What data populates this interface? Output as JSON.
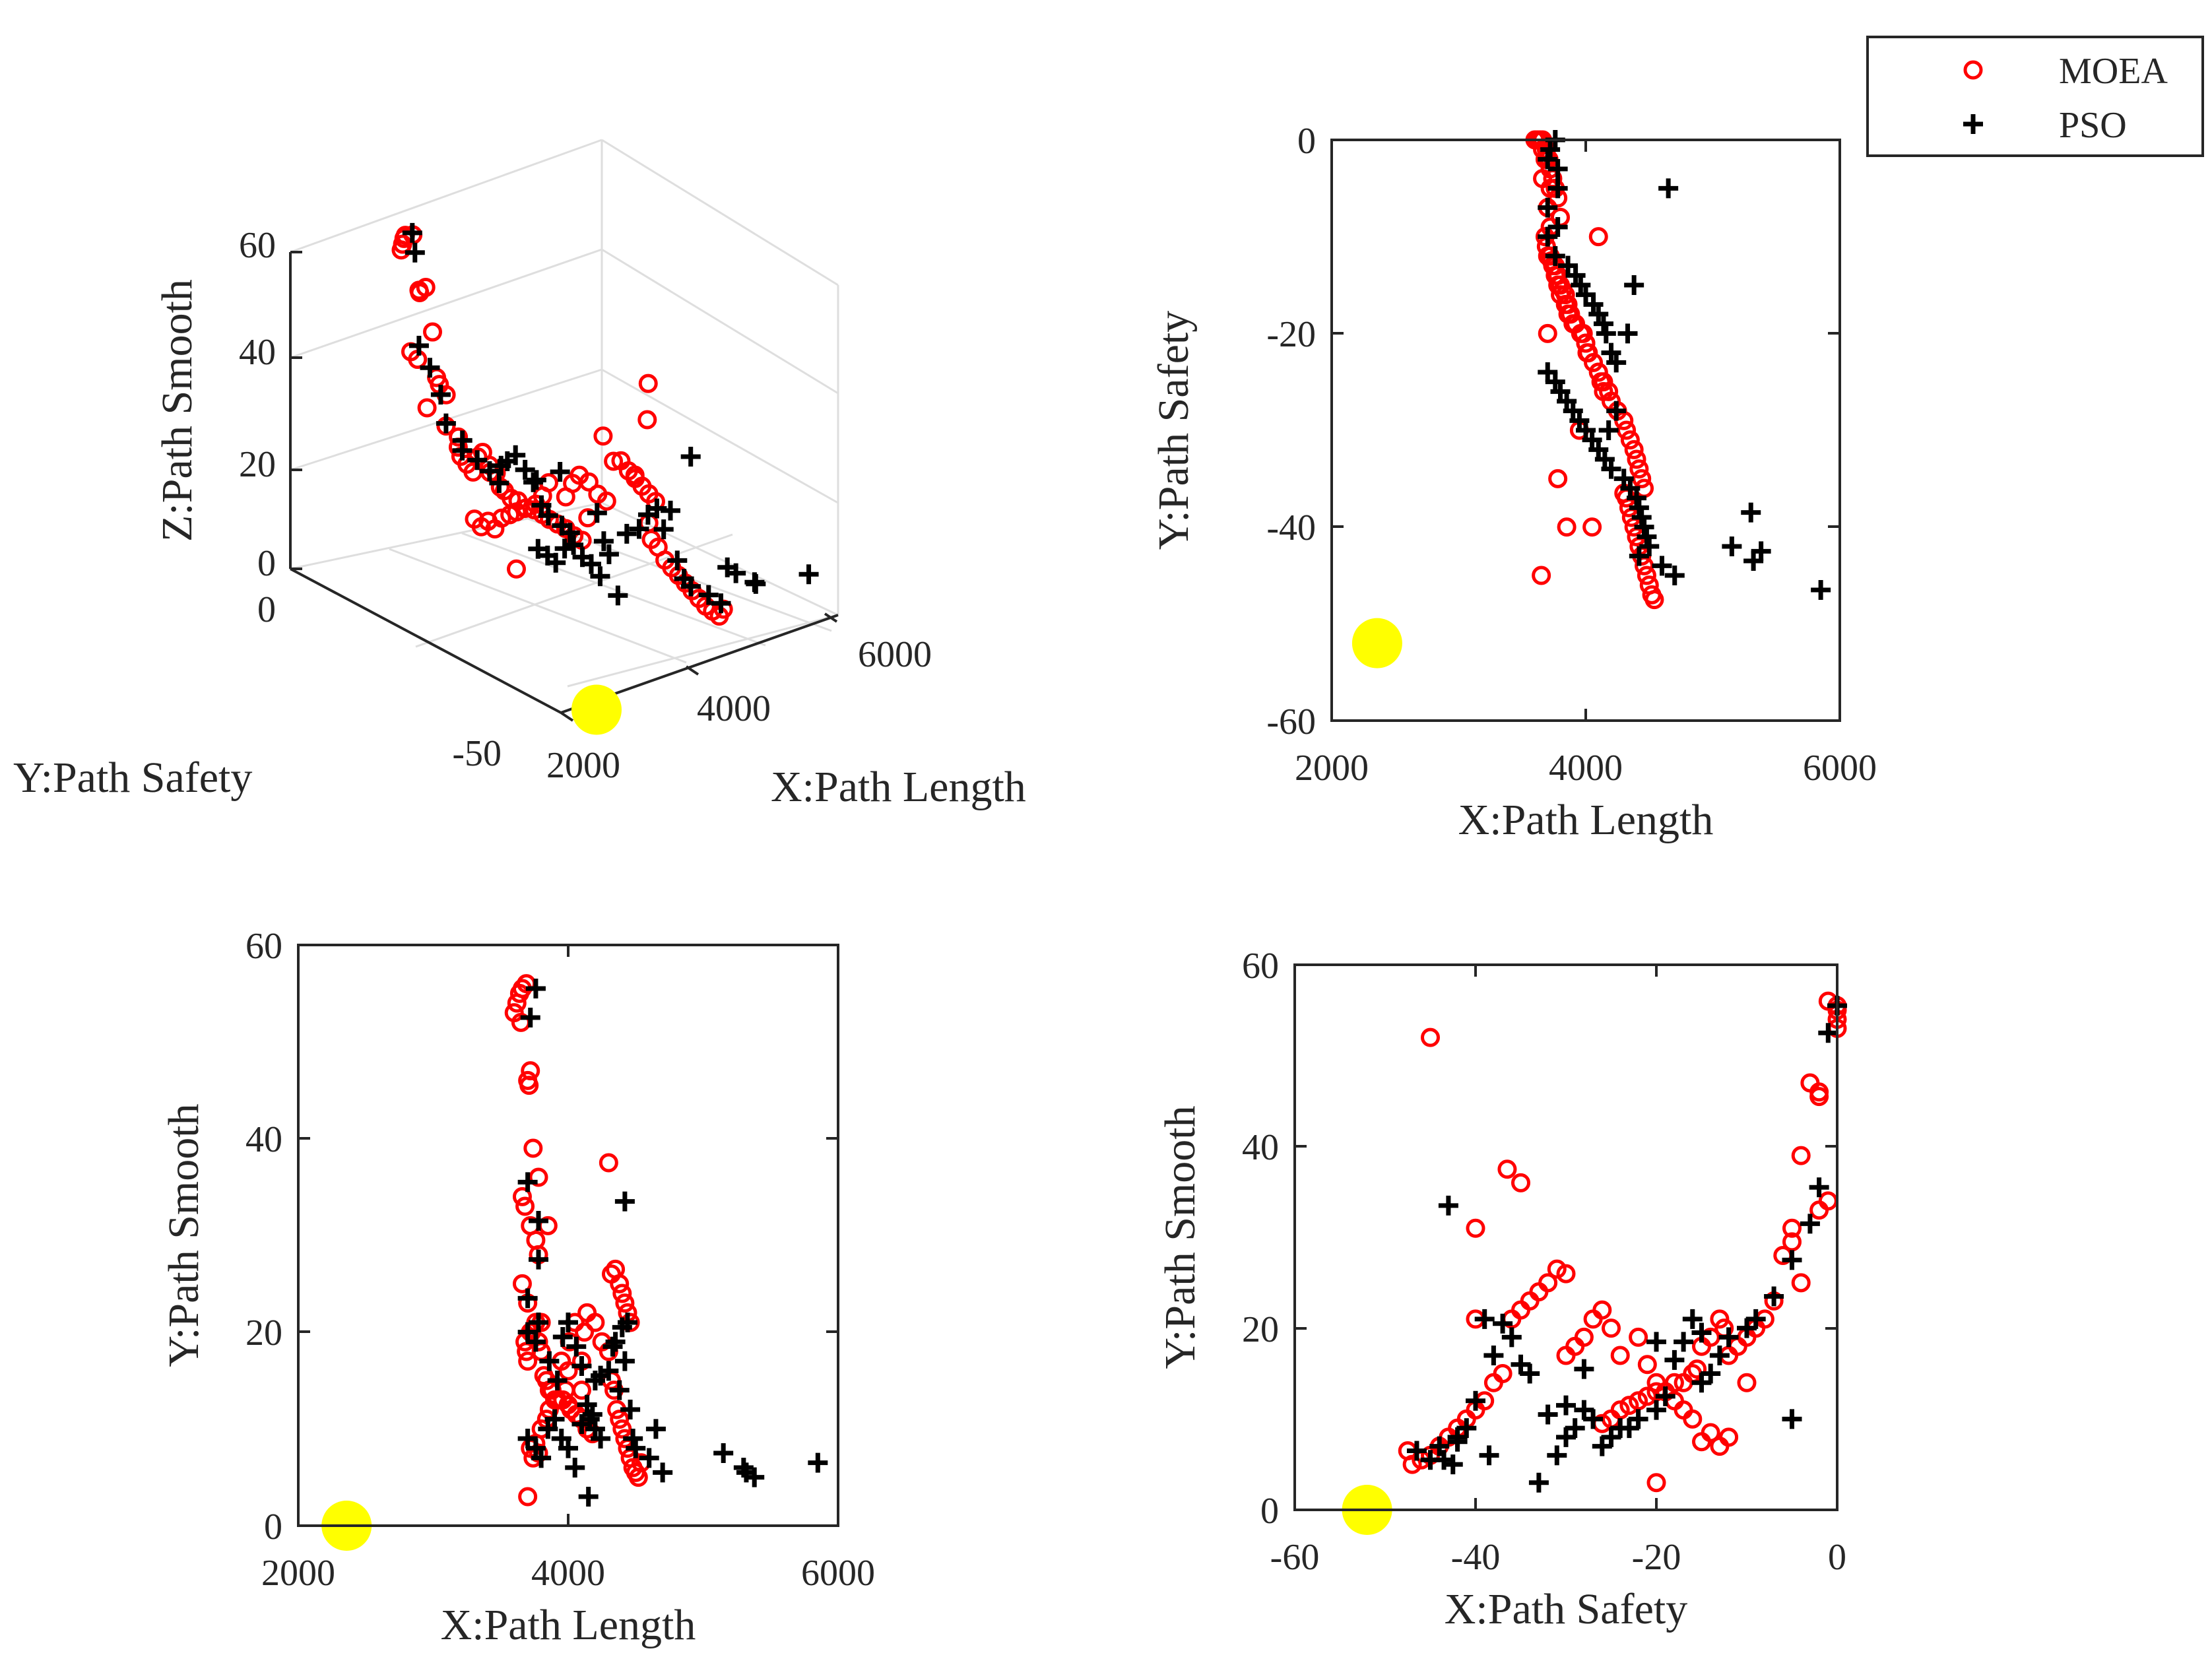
{
  "colors": {
    "moea": "#ff0000",
    "pso": "#000000",
    "ideal": "#ffff00",
    "axis": "#262626"
  },
  "legend": {
    "moea_label": "MOEA",
    "pso_label": "PSO",
    "placement": "top-right"
  },
  "chart_data": [
    {
      "type": "scatter3d",
      "xlabel": "X:Path Length",
      "ylabel": "Y:Path Safety",
      "zlabel": "Z:Path Smooth",
      "xlim": [
        2000,
        6000
      ],
      "ylim": [
        -50,
        0
      ],
      "zlim": [
        0,
        60
      ],
      "xticks": [
        "2000",
        "4000",
        "6000"
      ],
      "yticks": [
        "-50",
        "0"
      ],
      "zticks": [
        "0",
        "20",
        "40",
        "60"
      ],
      "ideal_point": {
        "x": 2358,
        "y": -52,
        "z": 0
      }
    },
    {
      "type": "scatter",
      "xlabel": "X:Path Length",
      "ylabel": "Y:Path Safety",
      "xlim": [
        2000,
        6000
      ],
      "ylim": [
        -60,
        0
      ],
      "xticks": [
        "2000",
        "4000",
        "6000"
      ],
      "yticks": [
        "-60",
        "-40",
        "-20",
        "0"
      ],
      "ideal_point": {
        "x": 2358,
        "y": -52
      }
    },
    {
      "type": "scatter",
      "xlabel": "X:Path Length",
      "ylabel": "Y:Path Smooth",
      "xlim": [
        2000,
        6000
      ],
      "ylim": [
        0,
        60
      ],
      "xticks": [
        "2000",
        "4000",
        "6000"
      ],
      "yticks": [
        "0",
        "20",
        "40",
        "60"
      ],
      "ideal_point": {
        "x": 2358,
        "y": 0
      }
    },
    {
      "type": "scatter",
      "xlabel": "X:Path Safety",
      "ylabel": "Y:Path Smooth",
      "xlim": [
        -60,
        0
      ],
      "ylim": [
        0,
        60
      ],
      "xticks": [
        "-60",
        "-40",
        "-20",
        "0"
      ],
      "yticks": [
        "0",
        "20",
        "40",
        "60"
      ],
      "ideal_point": {
        "x": -52,
        "y": 0
      }
    }
  ],
  "points": {
    "fields": [
      "length",
      "safety",
      "smooth"
    ],
    "moea": [
      [
        3600,
        0,
        53
      ],
      [
        3620,
        0,
        54
      ],
      [
        3640,
        0,
        55
      ],
      [
        3660,
        0,
        55.5
      ],
      [
        3690,
        -1,
        56
      ],
      [
        3700,
        -2,
        46
      ],
      [
        3710,
        -2,
        45.5
      ],
      [
        3720,
        -3,
        47
      ],
      [
        3660,
        -1,
        34
      ],
      [
        3680,
        -2,
        33
      ],
      [
        3740,
        -4,
        39
      ],
      [
        3720,
        -5,
        31
      ],
      [
        3760,
        -5,
        29.5
      ],
      [
        3780,
        -6,
        28
      ],
      [
        3660,
        -4,
        25
      ],
      [
        3700,
        -7,
        23
      ],
      [
        3800,
        -8,
        21
      ],
      [
        3720,
        -9,
        20
      ],
      [
        3680,
        -10,
        19
      ],
      [
        3690,
        -11,
        18
      ],
      [
        3700,
        -12,
        17
      ],
      [
        3730,
        -12.5,
        20
      ],
      [
        3760,
        -13,
        21
      ],
      [
        3780,
        -14,
        19
      ],
      [
        3800,
        -15,
        18
      ],
      [
        3820,
        -15.5,
        15.5
      ],
      [
        3840,
        -16,
        15
      ],
      [
        3860,
        -17,
        14
      ],
      [
        3880,
        -18,
        14
      ],
      [
        3920,
        -19,
        13
      ],
      [
        3960,
        -20,
        13
      ],
      [
        4000,
        -21,
        12.5
      ],
      [
        4020,
        -22,
        12
      ],
      [
        4060,
        -23,
        11.5
      ],
      [
        4100,
        -24,
        11
      ],
      [
        4140,
        -25,
        10
      ],
      [
        4180,
        -26,
        9.5
      ],
      [
        3720,
        -12,
        8
      ],
      [
        3740,
        -13,
        7
      ],
      [
        3760,
        -14,
        8.5
      ],
      [
        3780,
        -15,
        7.5
      ],
      [
        3800,
        -16,
        10
      ],
      [
        3840,
        -17,
        11
      ],
      [
        3860,
        -18,
        12
      ],
      [
        3900,
        -19,
        13
      ],
      [
        3980,
        -20,
        14
      ],
      [
        4000,
        -21,
        16
      ],
      [
        4010,
        -22,
        19
      ],
      [
        4100,
        -24,
        17
      ],
      [
        4120,
        -25,
        20
      ],
      [
        4140,
        -26,
        22
      ],
      [
        4200,
        -27,
        21
      ],
      [
        4250,
        -28,
        19
      ],
      [
        4300,
        -29,
        18
      ],
      [
        4320,
        -30,
        26
      ],
      [
        4350,
        -31,
        26.5
      ],
      [
        4380,
        -32,
        25
      ],
      [
        4400,
        -33,
        24
      ],
      [
        4420,
        -34,
        23
      ],
      [
        4440,
        -35,
        22
      ],
      [
        4460,
        -36,
        21
      ],
      [
        4300,
        -36.5,
        37.5
      ],
      [
        4320,
        -37,
        15
      ],
      [
        4340,
        -38,
        14
      ],
      [
        4360,
        -39,
        12
      ],
      [
        4380,
        -40,
        11
      ],
      [
        4400,
        -41,
        10
      ],
      [
        4420,
        -42,
        9
      ],
      [
        4440,
        -43,
        8
      ],
      [
        4460,
        -44,
        7
      ],
      [
        4480,
        -45,
        6
      ],
      [
        4500,
        -46,
        5.5
      ],
      [
        4520,
        -47,
        5
      ],
      [
        4540,
        -47.5,
        6.5
      ],
      [
        3700,
        -20,
        3
      ],
      [
        3780,
        -35,
        36
      ],
      [
        3850,
        -40,
        31
      ],
      [
        3650,
        -45,
        52
      ],
      [
        4100,
        -10,
        14
      ],
      [
        3950,
        -30,
        17
      ],
      [
        4050,
        -40,
        21
      ]
    ],
    "pso": [
      [
        3760,
        0,
        55.5
      ],
      [
        3720,
        -1,
        52.5
      ],
      [
        3700,
        -2,
        35.5
      ],
      [
        3780,
        -3,
        31.5
      ],
      [
        3780,
        -5,
        27.5
      ],
      [
        3700,
        -7,
        23.5
      ],
      [
        3780,
        -9,
        21
      ],
      [
        3700,
        -10,
        20
      ],
      [
        3760,
        -12,
        19
      ],
      [
        3860,
        -13,
        17
      ],
      [
        3920,
        -14,
        15
      ],
      [
        3960,
        -15,
        19.5
      ],
      [
        4000,
        -16,
        21
      ],
      [
        4060,
        -17,
        18.5
      ],
      [
        4100,
        -18,
        16.5
      ],
      [
        4140,
        -19,
        12.5
      ],
      [
        4160,
        -20,
        11
      ],
      [
        4200,
        -22,
        10
      ],
      [
        4240,
        -23,
        9
      ],
      [
        3700,
        -24,
        9
      ],
      [
        3760,
        -25,
        8
      ],
      [
        3800,
        -26,
        7
      ],
      [
        3850,
        -27,
        10
      ],
      [
        3900,
        -28,
        11
      ],
      [
        3950,
        -29,
        9
      ],
      [
        4000,
        -30,
        8
      ],
      [
        4050,
        -31,
        6
      ],
      [
        4100,
        -32,
        10.5
      ],
      [
        4150,
        -33,
        3
      ],
      [
        4200,
        -34,
        15
      ],
      [
        4300,
        -35,
        16
      ],
      [
        4350,
        -36,
        19
      ],
      [
        4400,
        -37,
        20.5
      ],
      [
        4420,
        -38,
        17
      ],
      [
        4440,
        -39,
        21
      ],
      [
        4460,
        -40,
        12
      ],
      [
        4480,
        -41,
        9
      ],
      [
        4500,
        -42,
        8
      ],
      [
        4420,
        -43,
        33.5
      ],
      [
        4600,
        -44,
        7
      ],
      [
        4700,
        -45,
        5.5
      ],
      [
        4650,
        -5,
        10
      ],
      [
        4380,
        -15,
        14
      ],
      [
        4330,
        -20,
        18.5
      ],
      [
        5150,
        -42,
        7.5
      ],
      [
        5300,
        -38.5,
        6
      ],
      [
        5320,
        -43.5,
        5.5
      ],
      [
        5380,
        -42.5,
        5
      ],
      [
        5850,
        -46.5,
        6.5
      ],
      [
        4240,
        -28,
        15.5
      ],
      [
        4180,
        -30,
        11.5
      ]
    ]
  }
}
